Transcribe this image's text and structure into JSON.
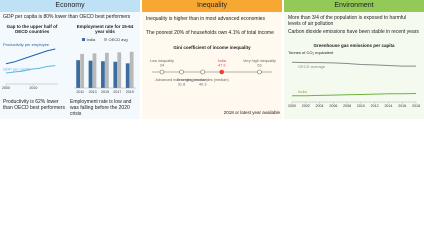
{
  "economy": {
    "title": "Economy",
    "text1": "GDP per capita is 80% lower than OECD best performers",
    "gap_chart": {
      "type": "line",
      "title": "Gap to the upper half of OECD countries",
      "x": [
        2000,
        2003,
        2006,
        2009,
        2012,
        2015,
        2018
      ],
      "xlim": [
        2000,
        2019
      ],
      "xticks": [
        2000,
        2010
      ],
      "ylim": [
        -100,
        -50
      ],
      "series": [
        {
          "name": "Productivity per employee",
          "color": "#1f5fa8",
          "values": [
            -78,
            -76,
            -73,
            -70,
            -67,
            -64,
            -62
          ]
        },
        {
          "name": "GDP per capita",
          "color": "#5fb4e6",
          "values": [
            -88,
            -87,
            -86,
            -84,
            -83,
            -81,
            -80
          ]
        }
      ]
    },
    "employment_chart": {
      "type": "bar",
      "title": "Employment rate for 15-64 year olds",
      "categories": [
        "2011",
        "2013",
        "2015",
        "2017",
        "2019"
      ],
      "ylim": [
        0,
        80
      ],
      "series": [
        {
          "name": "India",
          "color": "#3d6d9e",
          "values": [
            53,
            52,
            51,
            50,
            47
          ]
        },
        {
          "name": "OECD avg",
          "color": "#b9b9b9",
          "values": [
            65,
            66,
            67,
            68,
            69
          ]
        }
      ]
    },
    "text2": "Productivity is 62% lower than OECD best performers",
    "text3": "Employment rate is low and was falling before the 2020 crisis"
  },
  "inequality": {
    "title": "Inequality",
    "text1": "Inequality is higher than in most advanced economies",
    "text2": "The poorest 20% of households own 4.1% of total income",
    "gini_chart": {
      "type": "scale",
      "title": "Gini coefficient of income inequality",
      "xlim": [
        20,
        68
      ],
      "categories": [
        "Low inequality",
        "Advanced economies (median)",
        "Emerging economies (median)",
        "India",
        "Very high inequality"
      ],
      "values": [
        24.0,
        31.8,
        40.3,
        47.9,
        63.0
      ],
      "colors": [
        "#666666",
        "#666666",
        "#666666",
        "#e8423b",
        "#666666"
      ]
    },
    "note": "2018 or latest year available"
  },
  "environment": {
    "title": "Environment",
    "text1": "More than 3/4 of the population is exposed to harmful levels of air pollution",
    "text2": "Carbon dioxide emissions have been stable in recent years",
    "ghg_chart": {
      "type": "line",
      "title": "Greenhouse gas emissions per capita",
      "ylabel": "Tonnes of CO₂ equivalent",
      "x": [
        2000,
        2002,
        2004,
        2006,
        2008,
        2010,
        2012,
        2014,
        2016,
        2018
      ],
      "xlim": [
        2000,
        2018
      ],
      "xticks": [
        2000,
        2002,
        2004,
        2006,
        2008,
        2010,
        2012,
        2014,
        2016,
        2018
      ],
      "ylim": [
        0,
        14
      ],
      "series": [
        {
          "name": "OECD average",
          "color": "#8a8a8a",
          "values": [
            12.1,
            12.0,
            12.0,
            11.9,
            11.7,
            11.4,
            11.3,
            11.1,
            10.9,
            10.9
          ]
        },
        {
          "name": "India",
          "color": "#6cb33f",
          "values": [
            1.9,
            1.9,
            2.0,
            2.1,
            2.2,
            2.3,
            2.4,
            2.5,
            2.5,
            2.6
          ]
        }
      ]
    }
  }
}
